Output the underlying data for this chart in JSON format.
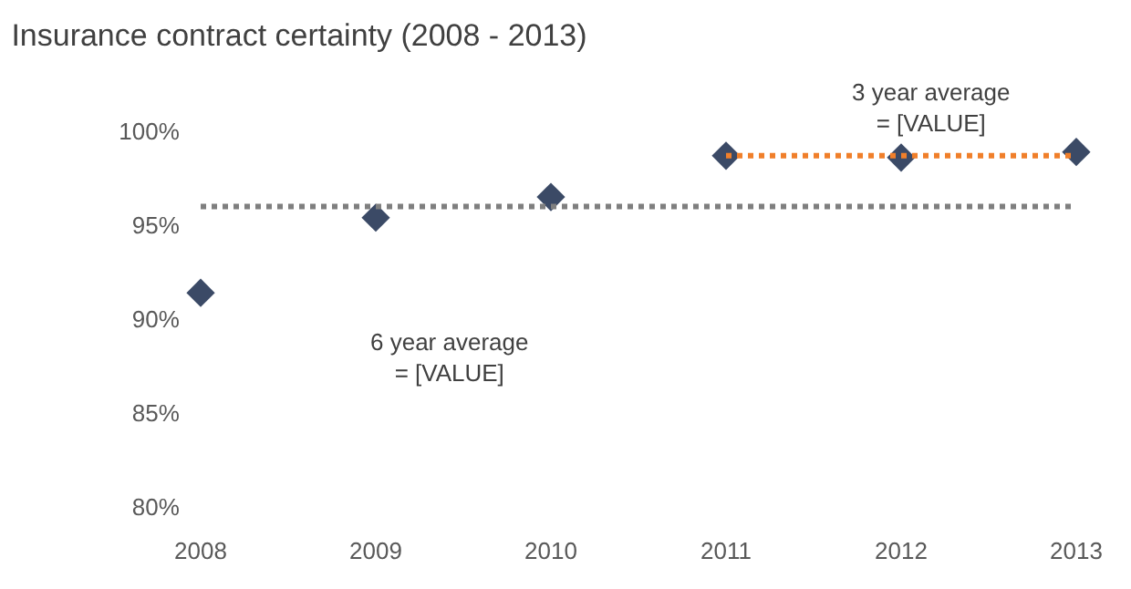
{
  "chart_data": {
    "type": "scatter",
    "title": "Insurance contract certainty (2008 - 2013)",
    "x": [
      2008,
      2009,
      2010,
      2011,
      2012,
      2013
    ],
    "series": [
      {
        "color": "#3b4a66",
        "values": [
          91.4,
          95.4,
          96.5,
          98.7,
          98.6,
          98.9
        ],
        "marker": "diamond"
      },
      {
        "type": "line",
        "color": "#7f7f7f",
        "x": [
          2008,
          2013
        ],
        "values": [
          96.0,
          96.0
        ],
        "line_style": "dotted",
        "marker": "none"
      },
      {
        "type": "line",
        "color": "#f07f2a",
        "x": [
          2011,
          2013
        ],
        "values": [
          98.7,
          98.7
        ],
        "line_style": "dotted",
        "marker": "none"
      }
    ],
    "annotations": [
      "6 year average\n= [VALUE]",
      "3 year average\n= [VALUE]"
    ],
    "xlim": [
      2008,
      2013
    ],
    "ylim": [
      80,
      100
    ],
    "xticks": [
      2008,
      2009,
      2010,
      2011,
      2012,
      2013
    ],
    "yticks": [
      {
        "value": 80,
        "label": "80%"
      },
      {
        "value": 85,
        "label": "85%"
      },
      {
        "value": 90,
        "label": "90%"
      },
      {
        "value": 95,
        "label": "95%"
      },
      {
        "value": 100,
        "label": "100%"
      }
    ],
    "legend": false
  }
}
